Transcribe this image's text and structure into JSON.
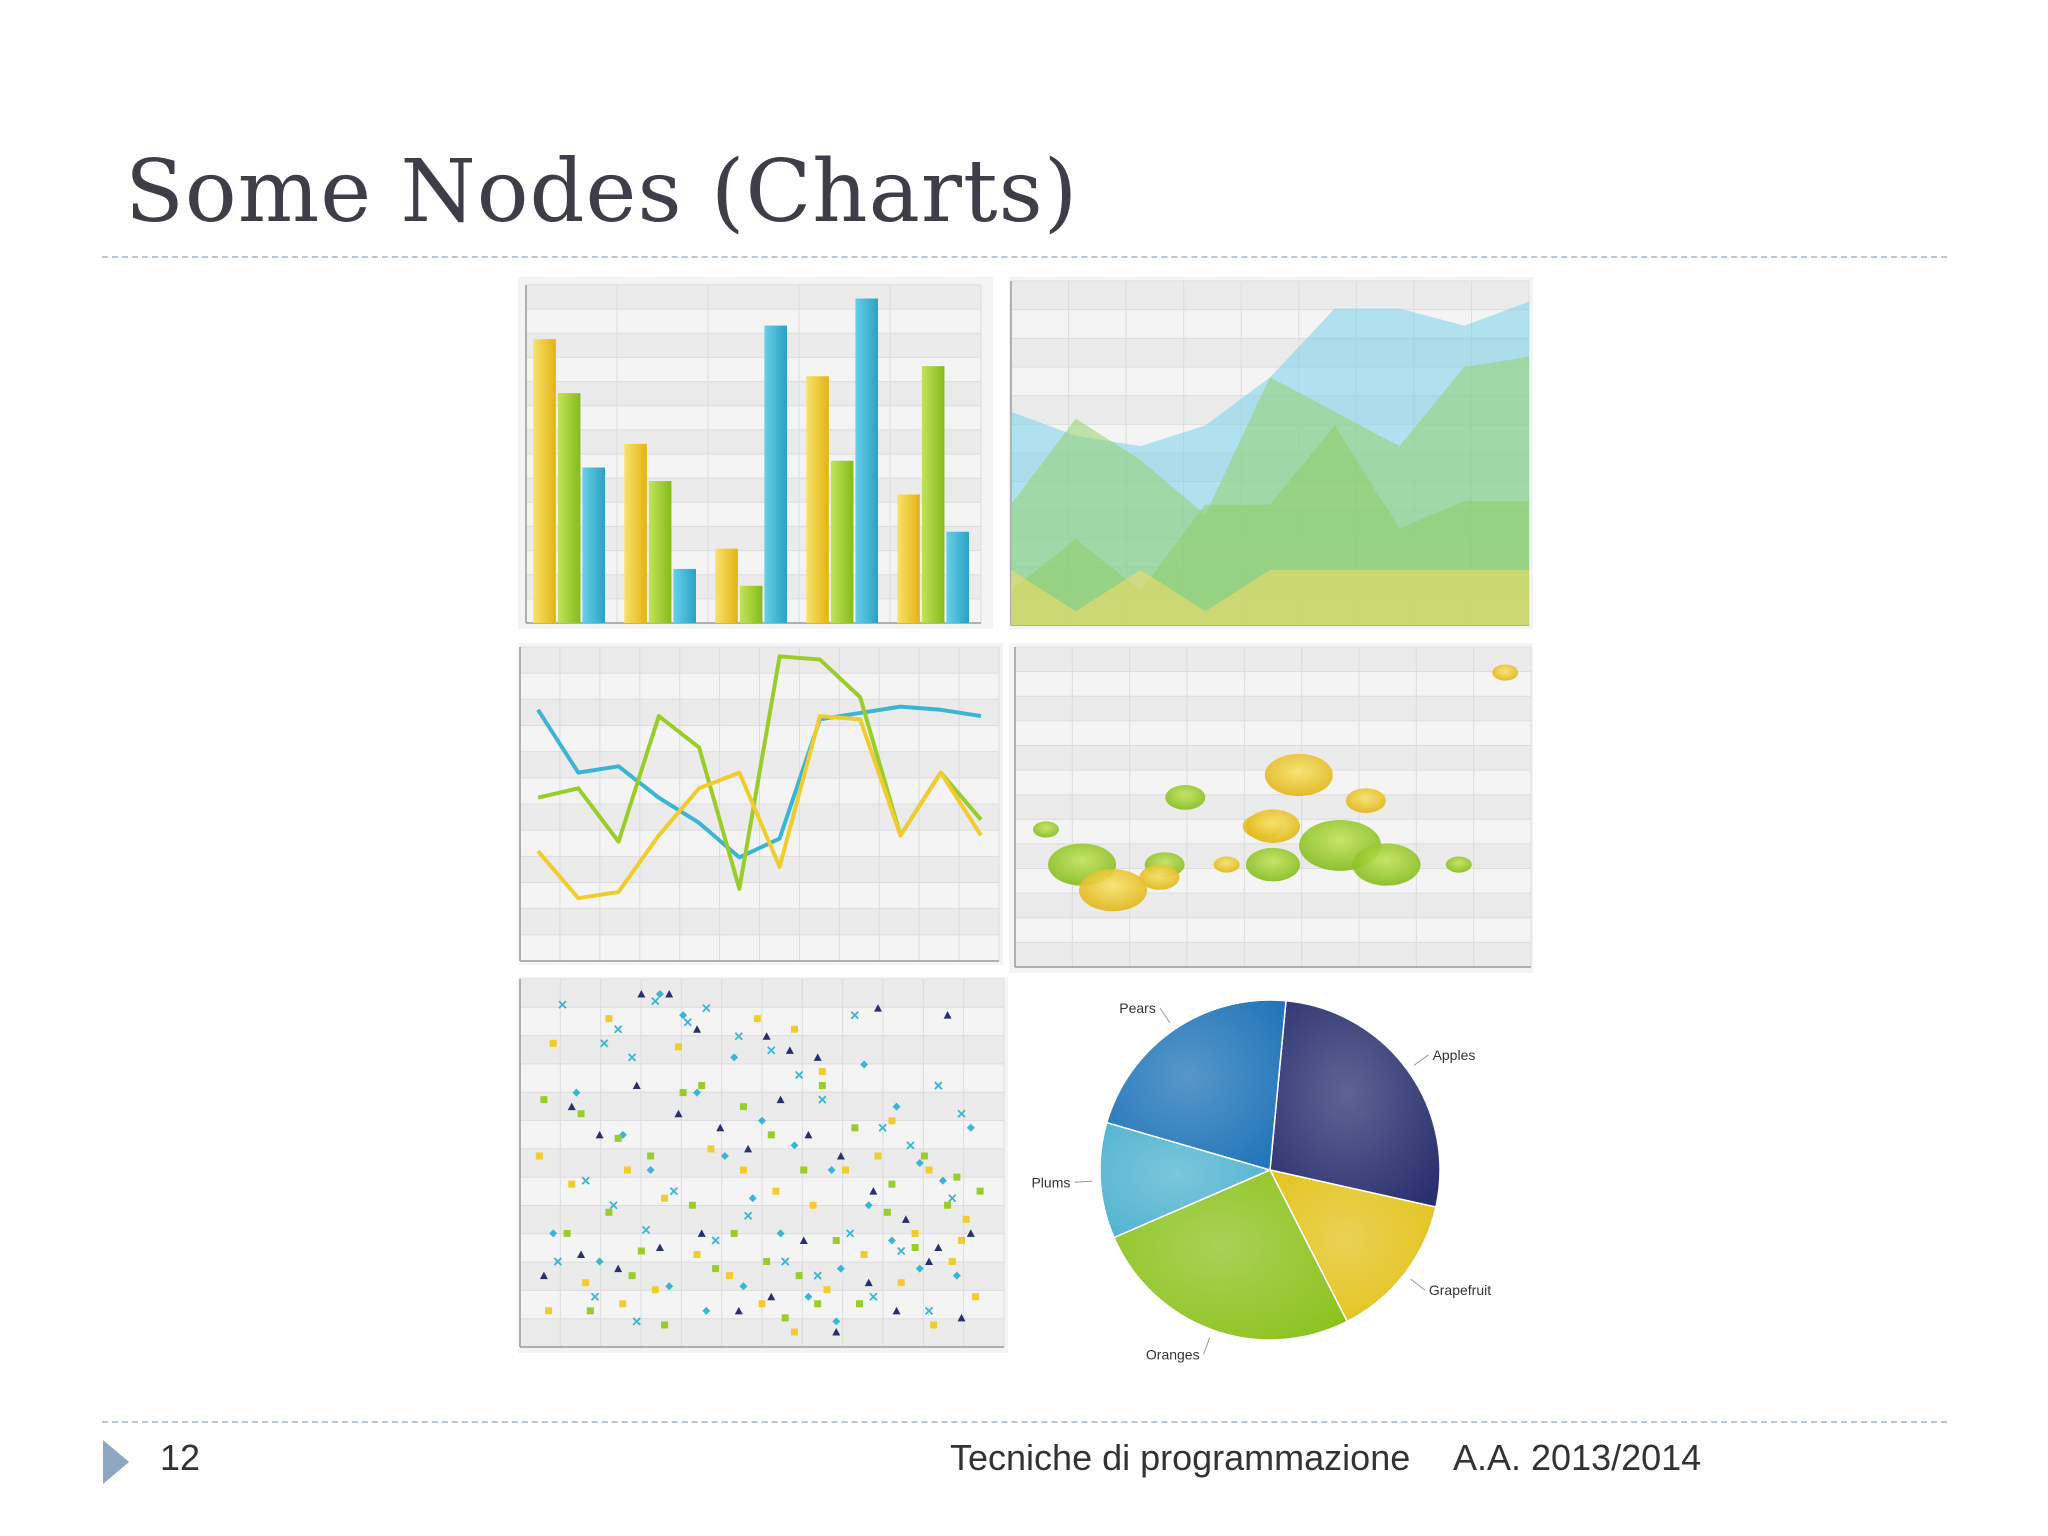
{
  "slide": {
    "title": "Some Nodes (Charts)",
    "page_number": "12",
    "course": "Tecniche di programmazione",
    "academic_year": "A.A. 2013/2014"
  },
  "colors": {
    "yellow": "#f0cc2e",
    "green": "#9acc2c",
    "blue": "#3cb4d4",
    "navy": "#2a2f6e",
    "pie_pears": "#1f74b8",
    "pie_plums": "#4fb3cf",
    "pie_oranges": "#8cc21e",
    "pie_grapefruit": "#e3c21a",
    "accent": "#8ea6c1"
  },
  "chart_data": [
    {
      "type": "bar",
      "categories": [
        "1",
        "2",
        "3",
        "4",
        "5"
      ],
      "series": [
        {
          "values": [
            84,
            53,
            22,
            73,
            38
          ]
        },
        {
          "values": [
            68,
            42,
            11,
            48,
            76
          ]
        },
        {
          "values": [
            46,
            16,
            88,
            96,
            27
          ]
        }
      ],
      "ylim": [
        0,
        100
      ],
      "grid": true
    },
    {
      "type": "area",
      "x": [
        0,
        1,
        2,
        3,
        4,
        5,
        6,
        7,
        8
      ],
      "series": [
        {
          "values": [
            62,
            55,
            52,
            58,
            72,
            92,
            92,
            87,
            94
          ]
        },
        {
          "values": [
            35,
            60,
            48,
            32,
            72,
            62,
            52,
            75,
            78
          ]
        },
        {
          "values": [
            10,
            25,
            10,
            35,
            35,
            58,
            28,
            36,
            36
          ]
        },
        {
          "values": [
            16,
            4,
            16,
            4,
            16,
            16,
            16,
            16,
            16
          ]
        }
      ],
      "ylim": [
        0,
        100
      ],
      "grid": true
    },
    {
      "type": "line",
      "x": [
        0,
        1,
        2,
        3,
        4,
        5,
        6,
        7,
        8,
        9,
        10,
        11
      ],
      "series": [
        {
          "values": [
            80,
            60,
            62,
            52,
            44,
            33,
            39,
            77,
            79,
            81,
            80,
            78
          ]
        },
        {
          "values": [
            52,
            55,
            38,
            78,
            68,
            23,
            97,
            96,
            84,
            40,
            60,
            45
          ]
        },
        {
          "values": [
            35,
            20,
            22,
            40,
            55,
            60,
            30,
            78,
            77,
            40,
            60,
            40
          ]
        }
      ],
      "ylim": [
        0,
        100
      ],
      "grid": true
    },
    {
      "type": "scatter",
      "points": [
        {
          "x": 95,
          "y": 92,
          "size": 1,
          "color": "yellow"
        },
        {
          "x": 55,
          "y": 60,
          "size": 4,
          "color": "yellow"
        },
        {
          "x": 68,
          "y": 52,
          "size": 2,
          "color": "yellow"
        },
        {
          "x": 48,
          "y": 44,
          "size": 2,
          "color": "yellow"
        },
        {
          "x": 50,
          "y": 44,
          "size": 3,
          "color": "yellow"
        },
        {
          "x": 33,
          "y": 53,
          "size": 2,
          "color": "green"
        },
        {
          "x": 6,
          "y": 43,
          "size": 1,
          "color": "green"
        },
        {
          "x": 13,
          "y": 32,
          "size": 4,
          "color": "green"
        },
        {
          "x": 29,
          "y": 32,
          "size": 2,
          "color": "green"
        },
        {
          "x": 28,
          "y": 28,
          "size": 2,
          "color": "yellow"
        },
        {
          "x": 19,
          "y": 24,
          "size": 4,
          "color": "yellow"
        },
        {
          "x": 41,
          "y": 32,
          "size": 1,
          "color": "yellow"
        },
        {
          "x": 50,
          "y": 32,
          "size": 3,
          "color": "green"
        },
        {
          "x": 63,
          "y": 38,
          "size": 5,
          "color": "green"
        },
        {
          "x": 72,
          "y": 32,
          "size": 4,
          "color": "green"
        },
        {
          "x": 86,
          "y": 32,
          "size": 1,
          "color": "green"
        }
      ],
      "xlim": [
        0,
        100
      ],
      "ylim": [
        0,
        100
      ],
      "grid": true
    },
    {
      "type": "scatter",
      "series": [
        {
          "marker": "x",
          "color": "blue",
          "points": [
            [
              7,
              95
            ],
            [
              16,
              84
            ],
            [
              19,
              88
            ],
            [
              22,
              80
            ],
            [
              27,
              96
            ],
            [
              34,
              90
            ],
            [
              38,
              94
            ],
            [
              45,
              86
            ],
            [
              52,
              82
            ],
            [
              58,
              75
            ],
            [
              63,
              68
            ],
            [
              70,
              92
            ],
            [
              76,
              60
            ],
            [
              82,
              55
            ],
            [
              88,
              72
            ],
            [
              93,
              64
            ],
            [
              12,
              45
            ],
            [
              18,
              38
            ],
            [
              25,
              31
            ],
            [
              31,
              42
            ],
            [
              40,
              28
            ],
            [
              47,
              35
            ],
            [
              55,
              22
            ],
            [
              62,
              18
            ],
            [
              69,
              30
            ],
            [
              74,
              12
            ],
            [
              80,
              25
            ],
            [
              86,
              8
            ],
            [
              91,
              40
            ],
            [
              6,
              22
            ],
            [
              14,
              12
            ],
            [
              23,
              5
            ]
          ]
        },
        {
          "marker": "diamond",
          "color": "blue",
          "points": [
            [
              28,
              98
            ],
            [
              33,
              92
            ],
            [
              44,
              80
            ],
            [
              50,
              62
            ],
            [
              57,
              55
            ],
            [
              65,
              48
            ],
            [
              72,
              78
            ],
            [
              79,
              66
            ],
            [
              84,
              50
            ],
            [
              89,
              45
            ],
            [
              95,
              60
            ],
            [
              10,
              70
            ],
            [
              20,
              58
            ],
            [
              26,
              48
            ],
            [
              36,
              70
            ],
            [
              42,
              52
            ],
            [
              48,
              40
            ],
            [
              54,
              30
            ],
            [
              60,
              12
            ],
            [
              67,
              20
            ],
            [
              73,
              38
            ],
            [
              78,
              28
            ],
            [
              84,
              20
            ],
            [
              92,
              18
            ],
            [
              5,
              30
            ],
            [
              15,
              22
            ],
            [
              30,
              15
            ],
            [
              38,
              8
            ],
            [
              46,
              15
            ],
            [
              66,
              5
            ]
          ]
        },
        {
          "marker": "square",
          "color": "green",
          "points": [
            [
              3,
              68
            ],
            [
              11,
              64
            ],
            [
              19,
              57
            ],
            [
              26,
              52
            ],
            [
              33,
              70
            ],
            [
              37,
              72
            ],
            [
              46,
              66
            ],
            [
              52,
              58
            ],
            [
              59,
              48
            ],
            [
              63,
              72
            ],
            [
              70,
              60
            ],
            [
              78,
              44
            ],
            [
              85,
              52
            ],
            [
              92,
              46
            ],
            [
              8,
              30
            ],
            [
              17,
              36
            ],
            [
              24,
              25
            ],
            [
              35,
              38
            ],
            [
              44,
              30
            ],
            [
              51,
              22
            ],
            [
              58,
              18
            ],
            [
              66,
              28
            ],
            [
              71,
              10
            ],
            [
              77,
              36
            ],
            [
              83,
              26
            ],
            [
              90,
              38
            ],
            [
              97,
              42
            ],
            [
              13,
              8
            ],
            [
              22,
              18
            ],
            [
              29,
              4
            ],
            [
              40,
              20
            ],
            [
              55,
              6
            ],
            [
              62,
              10
            ]
          ]
        },
        {
          "marker": "square",
          "color": "yellow",
          "points": [
            [
              5,
              84
            ],
            [
              17,
              91
            ],
            [
              32,
              83
            ],
            [
              49,
              91
            ],
            [
              57,
              88
            ],
            [
              63,
              76
            ],
            [
              78,
              62
            ],
            [
              86,
              48
            ],
            [
              94,
              34
            ],
            [
              2,
              52
            ],
            [
              9,
              44
            ],
            [
              21,
              48
            ],
            [
              29,
              40
            ],
            [
              39,
              54
            ],
            [
              46,
              48
            ],
            [
              53,
              42
            ],
            [
              61,
              38
            ],
            [
              68,
              48
            ],
            [
              75,
              52
            ],
            [
              83,
              30
            ],
            [
              91,
              22
            ],
            [
              96,
              12
            ],
            [
              4,
              8
            ],
            [
              12,
              16
            ],
            [
              20,
              10
            ],
            [
              27,
              14
            ],
            [
              36,
              24
            ],
            [
              43,
              18
            ],
            [
              50,
              10
            ],
            [
              57,
              2
            ],
            [
              64,
              14
            ],
            [
              72,
              24
            ],
            [
              80,
              16
            ],
            [
              87,
              4
            ],
            [
              93,
              28
            ]
          ]
        },
        {
          "marker": "triangle",
          "color": "navy",
          "points": [
            [
              24,
              98
            ],
            [
              30,
              98
            ],
            [
              36,
              88
            ],
            [
              51,
              86
            ],
            [
              56,
              82
            ],
            [
              62,
              80
            ],
            [
              75,
              94
            ],
            [
              90,
              92
            ],
            [
              9,
              66
            ],
            [
              15,
              58
            ],
            [
              23,
              72
            ],
            [
              32,
              64
            ],
            [
              41,
              60
            ],
            [
              47,
              54
            ],
            [
              54,
              68
            ],
            [
              60,
              58
            ],
            [
              67,
              52
            ],
            [
              74,
              42
            ],
            [
              81,
              34
            ],
            [
              88,
              26
            ],
            [
              95,
              30
            ],
            [
              3,
              18
            ],
            [
              11,
              24
            ],
            [
              19,
              20
            ],
            [
              28,
              26
            ],
            [
              37,
              30
            ],
            [
              45,
              8
            ],
            [
              52,
              12
            ],
            [
              59,
              28
            ],
            [
              66,
              2
            ],
            [
              73,
              16
            ],
            [
              79,
              8
            ],
            [
              86,
              22
            ],
            [
              93,
              6
            ]
          ]
        }
      ],
      "xlim": [
        0,
        100
      ],
      "ylim": [
        0,
        100
      ],
      "grid": true
    },
    {
      "type": "pie",
      "slices": [
        {
          "label": "Apples",
          "value": 27,
          "color": "navy"
        },
        {
          "label": "Grapefruit",
          "value": 14,
          "color": "pie_grapefruit"
        },
        {
          "label": "Oranges",
          "value": 26,
          "color": "pie_oranges"
        },
        {
          "label": "Plums",
          "value": 11,
          "color": "pie_plums"
        },
        {
          "label": "Pears",
          "value": 22,
          "color": "pie_pears"
        }
      ]
    }
  ]
}
